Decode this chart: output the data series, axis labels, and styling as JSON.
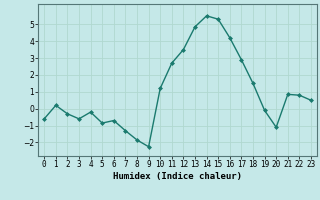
{
  "x": [
    0,
    1,
    2,
    3,
    4,
    5,
    6,
    7,
    8,
    9,
    10,
    11,
    12,
    13,
    14,
    15,
    16,
    17,
    18,
    19,
    20,
    21,
    22,
    23
  ],
  "y": [
    -0.6,
    0.2,
    -0.3,
    -0.6,
    -0.2,
    -0.85,
    -0.7,
    -1.3,
    -1.85,
    -2.25,
    1.2,
    2.7,
    3.5,
    4.85,
    5.5,
    5.3,
    4.2,
    2.9,
    1.5,
    -0.1,
    -1.1,
    0.85,
    0.8,
    0.5
  ],
  "line_color": "#1a7a6e",
  "marker": "D",
  "markersize": 2.0,
  "linewidth": 1.0,
  "xlabel": "Humidex (Indice chaleur)",
  "ylim": [
    -2.8,
    6.2
  ],
  "xlim": [
    -0.5,
    23.5
  ],
  "yticks": [
    -2,
    -1,
    0,
    1,
    2,
    3,
    4,
    5
  ],
  "xtick_labels": [
    "0",
    "1",
    "2",
    "3",
    "4",
    "5",
    "6",
    "7",
    "8",
    "9",
    "10",
    "11",
    "12",
    "13",
    "14",
    "15",
    "16",
    "17",
    "18",
    "19",
    "20",
    "21",
    "22",
    "23"
  ],
  "bg_color": "#c5e8e8",
  "grid_color": "#b0d8d0",
  "tick_fontsize": 5.5,
  "xlabel_fontsize": 6.5
}
